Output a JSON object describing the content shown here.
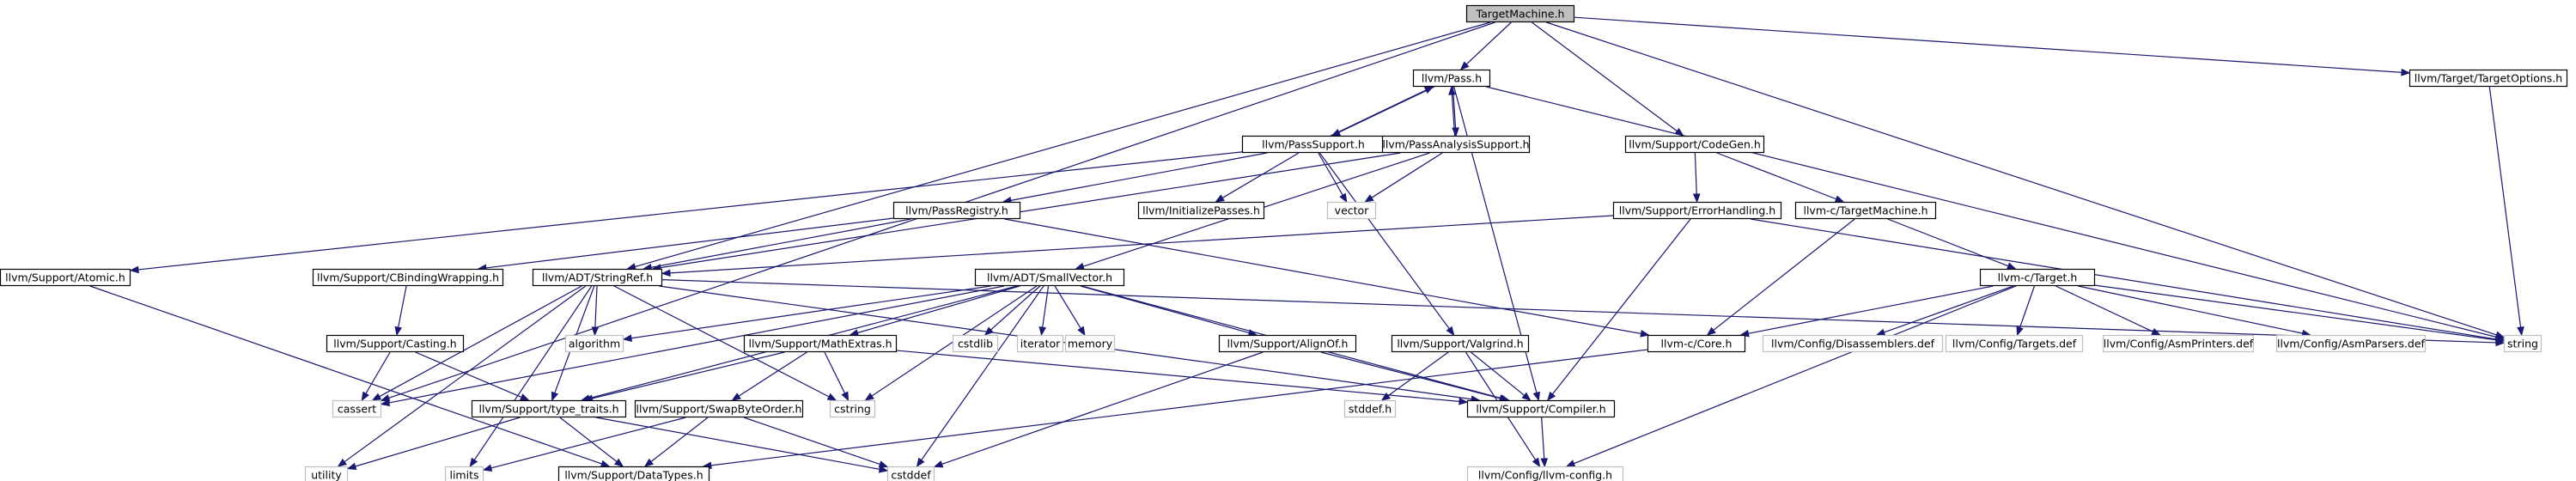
{
  "diagram": {
    "title": "TargetMachine.h",
    "colors": {
      "root_fill": "#bfbfbf",
      "local_border": "#000000",
      "system_border": "#bfbfbf",
      "edge": "#191970",
      "node_fill": "#ffffff"
    },
    "nodes": [
      {
        "id": "root",
        "label": "TargetMachine.h",
        "kind": "root"
      },
      {
        "id": "pass",
        "label": "llvm/Pass.h",
        "kind": "local"
      },
      {
        "id": "codegen",
        "label": "llvm/Support/CodeGen.h",
        "kind": "local"
      },
      {
        "id": "targetopts",
        "label": "llvm/Target/TargetOptions.h",
        "kind": "local"
      },
      {
        "id": "passsupport",
        "label": "llvm/PassSupport.h",
        "kind": "local"
      },
      {
        "id": "passanalysis",
        "label": "llvm/PassAnalysisSupport.h",
        "kind": "local"
      },
      {
        "id": "passregistry",
        "label": "llvm/PassRegistry.h",
        "kind": "local"
      },
      {
        "id": "initpasses",
        "label": "llvm/InitializePasses.h",
        "kind": "local"
      },
      {
        "id": "vector",
        "label": "vector",
        "kind": "system"
      },
      {
        "id": "errorhandling",
        "label": "llvm/Support/ErrorHandling.h",
        "kind": "local"
      },
      {
        "id": "ctargetmachine",
        "label": "llvm-c/TargetMachine.h",
        "kind": "local"
      },
      {
        "id": "atomic",
        "label": "llvm/Support/Atomic.h",
        "kind": "local"
      },
      {
        "id": "cbinding",
        "label": "llvm/Support/CBindingWrapping.h",
        "kind": "local"
      },
      {
        "id": "stringref",
        "label": "llvm/ADT/StringRef.h",
        "kind": "local"
      },
      {
        "id": "smallvector",
        "label": "llvm/ADT/SmallVector.h",
        "kind": "local"
      },
      {
        "id": "ctarget",
        "label": "llvm-c/Target.h",
        "kind": "local"
      },
      {
        "id": "string",
        "label": "string",
        "kind": "system"
      },
      {
        "id": "casting",
        "label": "llvm/Support/Casting.h",
        "kind": "local"
      },
      {
        "id": "algorithm",
        "label": "algorithm",
        "kind": "system"
      },
      {
        "id": "cstdlib",
        "label": "cstdlib",
        "kind": "system"
      },
      {
        "id": "iterator",
        "label": "iterator",
        "kind": "system"
      },
      {
        "id": "memory",
        "label": "memory",
        "kind": "system"
      },
      {
        "id": "mathextras",
        "label": "llvm/Support/MathExtras.h",
        "kind": "local"
      },
      {
        "id": "alignof",
        "label": "llvm/Support/AlignOf.h",
        "kind": "local"
      },
      {
        "id": "valgrind",
        "label": "llvm/Support/Valgrind.h",
        "kind": "local"
      },
      {
        "id": "ccore",
        "label": "llvm-c/Core.h",
        "kind": "local"
      },
      {
        "id": "disassemblers",
        "label": "llvm/Config/Disassemblers.def",
        "kind": "system"
      },
      {
        "id": "targetsdef",
        "label": "llvm/Config/Targets.def",
        "kind": "system"
      },
      {
        "id": "asmprinters",
        "label": "llvm/Config/AsmPrinters.def",
        "kind": "system"
      },
      {
        "id": "asmparsers",
        "label": "llvm/Config/AsmParsers.def",
        "kind": "system"
      },
      {
        "id": "cassert",
        "label": "cassert",
        "kind": "system"
      },
      {
        "id": "cstring",
        "label": "cstring",
        "kind": "system"
      },
      {
        "id": "typetraits",
        "label": "llvm/Support/type_traits.h",
        "kind": "local"
      },
      {
        "id": "swapbyte",
        "label": "llvm/Support/SwapByteOrder.h",
        "kind": "local"
      },
      {
        "id": "compiler",
        "label": "llvm/Support/Compiler.h",
        "kind": "local"
      },
      {
        "id": "stddef",
        "label": "stddef.h",
        "kind": "system"
      },
      {
        "id": "utility",
        "label": "utility",
        "kind": "system"
      },
      {
        "id": "limits",
        "label": "limits",
        "kind": "system"
      },
      {
        "id": "datatypes",
        "label": "llvm/Support/DataTypes.h",
        "kind": "local"
      },
      {
        "id": "cstddef",
        "label": "cstddef",
        "kind": "system"
      },
      {
        "id": "llvmconfig",
        "label": "llvm/Config/llvm-config.h",
        "kind": "system"
      }
    ],
    "edges": [
      [
        "root",
        "pass"
      ],
      [
        "root",
        "codegen"
      ],
      [
        "root",
        "targetopts"
      ],
      [
        "root",
        "stringref"
      ],
      [
        "root",
        "cassert"
      ],
      [
        "root",
        "string"
      ],
      [
        "pass",
        "passsupport"
      ],
      [
        "pass",
        "passanalysis"
      ],
      [
        "pass",
        "string"
      ],
      [
        "pass",
        "compiler"
      ],
      [
        "passsupport",
        "pass"
      ],
      [
        "passsupport",
        "passregistry"
      ],
      [
        "passsupport",
        "initpasses"
      ],
      [
        "passsupport",
        "vector"
      ],
      [
        "passsupport",
        "atomic"
      ],
      [
        "passsupport",
        "valgrind"
      ],
      [
        "passanalysis",
        "pass"
      ],
      [
        "passanalysis",
        "vector"
      ],
      [
        "passanalysis",
        "stringref"
      ],
      [
        "passanalysis",
        "smallvector"
      ],
      [
        "passregistry",
        "stringref"
      ],
      [
        "passregistry",
        "cbinding"
      ],
      [
        "passregistry",
        "ccore"
      ],
      [
        "codegen",
        "errorhandling"
      ],
      [
        "codegen",
        "ctargetmachine"
      ],
      [
        "targetopts",
        "string"
      ],
      [
        "errorhandling",
        "stringref"
      ],
      [
        "errorhandling",
        "compiler"
      ],
      [
        "errorhandling",
        "string"
      ],
      [
        "ctargetmachine",
        "ctarget"
      ],
      [
        "ctargetmachine",
        "ccore"
      ],
      [
        "atomic",
        "datatypes"
      ],
      [
        "cbinding",
        "casting"
      ],
      [
        "casting",
        "typetraits"
      ],
      [
        "casting",
        "cassert"
      ],
      [
        "stringref",
        "algorithm"
      ],
      [
        "stringref",
        "cassert"
      ],
      [
        "stringref",
        "cstring"
      ],
      [
        "stringref",
        "limits"
      ],
      [
        "stringref",
        "string"
      ],
      [
        "stringref",
        "utility"
      ],
      [
        "stringref",
        "typetraits"
      ],
      [
        "stringref",
        "compiler"
      ],
      [
        "smallvector",
        "algorithm"
      ],
      [
        "smallvector",
        "cstdlib"
      ],
      [
        "smallvector",
        "iterator"
      ],
      [
        "smallvector",
        "memory"
      ],
      [
        "smallvector",
        "mathextras"
      ],
      [
        "smallvector",
        "alignof"
      ],
      [
        "smallvector",
        "compiler"
      ],
      [
        "smallvector",
        "typetraits"
      ],
      [
        "smallvector",
        "cassert"
      ],
      [
        "smallvector",
        "cstddef"
      ],
      [
        "smallvector",
        "cstring"
      ],
      [
        "ctarget",
        "disassemblers"
      ],
      [
        "ctarget",
        "targetsdef"
      ],
      [
        "ctarget",
        "asmprinters"
      ],
      [
        "ctarget",
        "asmparsers"
      ],
      [
        "ctarget",
        "ccore"
      ],
      [
        "ctarget",
        "llvmconfig"
      ],
      [
        "ctarget",
        "string"
      ],
      [
        "mathextras",
        "swapbyte"
      ],
      [
        "mathextras",
        "typetraits"
      ],
      [
        "mathextras",
        "cstring"
      ],
      [
        "mathextras",
        "compiler"
      ],
      [
        "alignof",
        "compiler"
      ],
      [
        "alignof",
        "cstddef"
      ],
      [
        "valgrind",
        "compiler"
      ],
      [
        "valgrind",
        "llvmconfig"
      ],
      [
        "valgrind",
        "stddef"
      ],
      [
        "ccore",
        "datatypes"
      ],
      [
        "typetraits",
        "datatypes"
      ],
      [
        "typetraits",
        "utility"
      ],
      [
        "typetraits",
        "cstddef"
      ],
      [
        "swapbyte",
        "datatypes"
      ],
      [
        "swapbyte",
        "cstddef"
      ],
      [
        "swapbyte",
        "limits"
      ],
      [
        "compiler",
        "llvmconfig"
      ]
    ]
  }
}
